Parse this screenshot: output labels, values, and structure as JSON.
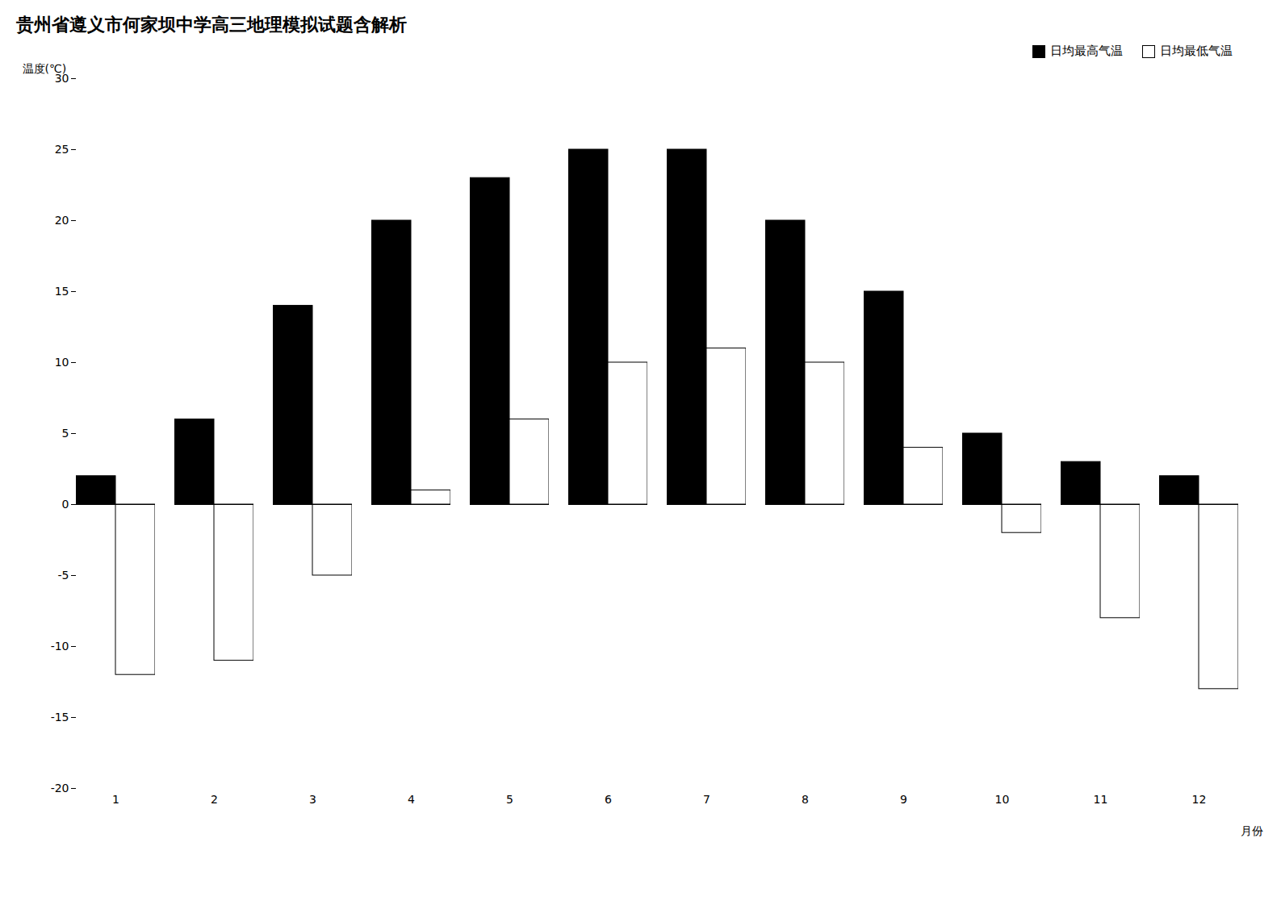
{
  "chart_data": {
    "type": "bar",
    "title": "贵州省遵义市何家坝中学高三地理模拟试题含解析",
    "categories": [
      "1",
      "2",
      "3",
      "4",
      "5",
      "6",
      "7",
      "8",
      "9",
      "10",
      "11",
      "12"
    ],
    "series": [
      {
        "name": "日均最高气温",
        "color": "black",
        "values": [
          2,
          6,
          14,
          20,
          23,
          25,
          25,
          20,
          15,
          5,
          3,
          2
        ]
      },
      {
        "name": "日均最低气温",
        "color": "white",
        "values": [
          -12,
          -11,
          -5,
          1,
          6,
          10,
          11,
          10,
          4,
          -2,
          -8,
          -13
        ]
      }
    ],
    "ylim": [
      -20,
      30
    ],
    "yticks": [
      -20,
      -15,
      -10,
      -5,
      0,
      5,
      10,
      15,
      20,
      25,
      30
    ],
    "ylabel": "温度(℃)",
    "xlabel": "月份",
    "legend": "upper right"
  }
}
